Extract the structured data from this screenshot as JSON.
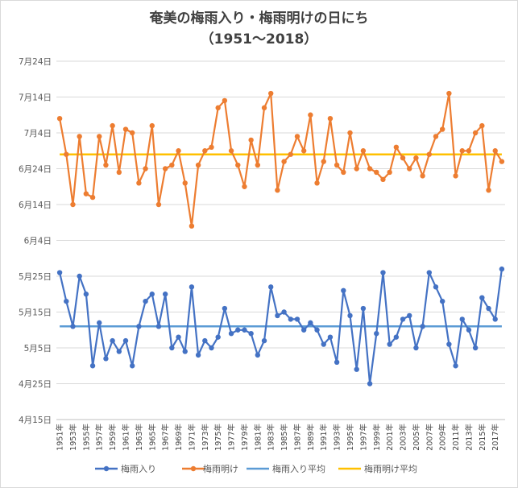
{
  "chart_data": {
    "type": "line",
    "title": "奄美の梅雨入り・梅雨明けの日にち",
    "subtitle": "（1951～2018）",
    "y_unit": "day-of-year (date axis, labels shown as 月日)",
    "y_ticks": [
      {
        "value": 105,
        "label": "4月15日"
      },
      {
        "value": 115,
        "label": "4月25日"
      },
      {
        "value": 125,
        "label": "5月5日"
      },
      {
        "value": 135,
        "label": "5月15日"
      },
      {
        "value": 145,
        "label": "5月25日"
      },
      {
        "value": 155,
        "label": "6月4日"
      },
      {
        "value": 165,
        "label": "6月14日"
      },
      {
        "value": 175,
        "label": "6月24日"
      },
      {
        "value": 185,
        "label": "7月4日"
      },
      {
        "value": 195,
        "label": "7月14日"
      },
      {
        "value": 205,
        "label": "7月24日"
      }
    ],
    "ylim": [
      105,
      205
    ],
    "x_tick_labels": [
      "1951年",
      "1953年",
      "1955年",
      "1957年",
      "1959年",
      "1961年",
      "1963年",
      "1965年",
      "1967年",
      "1969年",
      "1971年",
      "1973年",
      "1975年",
      "1977年",
      "1979年",
      "1981年",
      "1983年",
      "1985年",
      "1987年",
      "1989年",
      "1991年",
      "1993年",
      "1995年",
      "1997年",
      "1999年",
      "2001年",
      "2003年",
      "2005年",
      "2007年",
      "2009年",
      "2011年",
      "2013年",
      "2015年",
      "2017年"
    ],
    "years": [
      1951,
      1952,
      1953,
      1954,
      1955,
      1956,
      1957,
      1958,
      1959,
      1960,
      1961,
      1962,
      1963,
      1964,
      1965,
      1966,
      1967,
      1968,
      1969,
      1970,
      1971,
      1972,
      1973,
      1974,
      1975,
      1976,
      1977,
      1978,
      1979,
      1980,
      1981,
      1982,
      1983,
      1984,
      1985,
      1986,
      1987,
      1988,
      1989,
      1990,
      1991,
      1992,
      1993,
      1994,
      1995,
      1996,
      1997,
      1998,
      1999,
      2000,
      2001,
      2002,
      2003,
      2004,
      2005,
      2006,
      2007,
      2008,
      2009,
      2010,
      2011,
      2012,
      2013,
      2014,
      2015,
      2016,
      2017,
      2018
    ],
    "series": [
      {
        "name": "梅雨入り",
        "color": "#4472c4",
        "marker": true,
        "values": [
          146,
          138,
          131,
          145,
          140,
          120,
          132,
          122,
          127,
          124,
          127,
          120,
          131,
          138,
          140,
          131,
          140,
          125,
          128,
          124,
          142,
          123,
          127,
          125,
          128,
          136,
          129,
          130,
          130,
          129,
          123,
          127,
          142,
          134,
          135,
          133,
          133,
          130,
          132,
          130,
          126,
          128,
          121,
          141,
          134,
          119,
          136,
          115,
          129,
          146,
          126,
          128,
          133,
          134,
          125,
          131,
          146,
          142,
          138,
          126,
          120,
          133,
          130,
          125,
          139,
          136,
          133,
          147
        ]
      },
      {
        "name": "梅雨明け",
        "color": "#ed7d31",
        "marker": true,
        "values": [
          189,
          179,
          165,
          184,
          168,
          167,
          184,
          176,
          187,
          174,
          186,
          185,
          171,
          175,
          187,
          165,
          175,
          176,
          180,
          171,
          159,
          176,
          180,
          181,
          192,
          194,
          180,
          176,
          170,
          183,
          176,
          192,
          196,
          169,
          177,
          179,
          184,
          180,
          190,
          171,
          177,
          189,
          176,
          174,
          185,
          175,
          180,
          175,
          174,
          172,
          174,
          181,
          178,
          175,
          178,
          173,
          179,
          184,
          186,
          196,
          173,
          180,
          180,
          185,
          187,
          169,
          180,
          177
        ]
      },
      {
        "name": "梅雨入り平均",
        "color": "#5b9bd5",
        "marker": false,
        "constant": 131
      },
      {
        "name": "梅雨明け平均",
        "color": "#ffc000",
        "marker": false,
        "constant": 179
      }
    ],
    "legend_position": "bottom",
    "grid": {
      "horizontal": true,
      "vertical": false
    }
  }
}
